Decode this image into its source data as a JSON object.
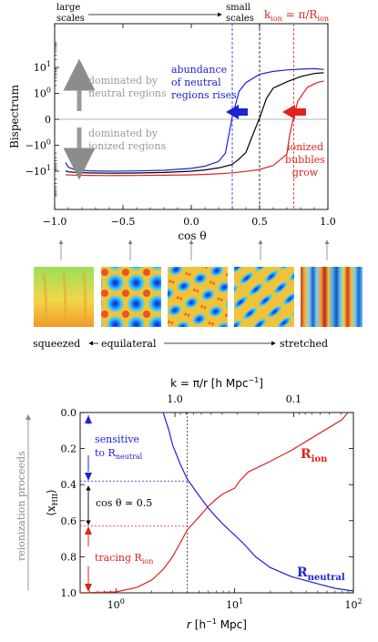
{
  "header": {
    "large_scales": "large\nscales",
    "small_scales": "small\nscales",
    "k_ion_label": "k_ion = π/R_ion"
  },
  "thumbnails": {
    "labels": {
      "squeezed": "squeezed",
      "equilateral": "equilateral",
      "stretched": "stretched"
    }
  },
  "side_label": "reionization proceeds",
  "colors": {
    "blue": "#1f22d6",
    "red": "#e0221f",
    "black": "#000000",
    "gray": "#9a9a9a"
  },
  "chart_data": [
    {
      "type": "line",
      "title": "",
      "xlabel": "cos θ",
      "ylabel": "Bispectrum",
      "yscale": "symlog",
      "xlim": [
        -1.0,
        1.0
      ],
      "ylim": [
        -20,
        15
      ],
      "xticks": [
        "−1.0",
        "−0.5",
        "0.0",
        "0.5",
        "1.0"
      ],
      "yticks": [
        "10^1",
        "10^0",
        "0",
        "−10^0",
        "−10^1"
      ],
      "vlines": [
        {
          "x": 0.3,
          "color": "blue",
          "style": "dashed"
        },
        {
          "x": 0.5,
          "color": "black",
          "style": "dashed"
        },
        {
          "x": 0.75,
          "color": "red",
          "style": "dashed"
        }
      ],
      "annotations": {
        "neutral_dominated": "dominated by\nneutral regions",
        "ionized_dominated": "dominated by\nionized regions",
        "blue_note": "abundance\nof neutral\nregions rises",
        "red_note": "ionized\nbubbles\ngrow"
      },
      "series": [
        {
          "color": "blue",
          "x": [
            -0.92,
            -0.9,
            -0.85,
            -0.75,
            -0.6,
            -0.4,
            -0.2,
            0.0,
            0.1,
            0.2,
            0.25,
            0.3,
            0.35,
            0.4,
            0.5,
            0.6,
            0.7,
            0.8,
            0.9,
            0.97
          ],
          "y": [
            -4.6,
            -7.0,
            -8.8,
            -9.7,
            -10.0,
            -9.8,
            -9.2,
            -7.8,
            -6.4,
            -4.2,
            -2.0,
            0.1,
            1.2,
            2.6,
            5.4,
            7.0,
            8.0,
            8.6,
            8.9,
            8.3
          ]
        },
        {
          "color": "black",
          "x": [
            -0.92,
            -0.9,
            -0.85,
            -0.75,
            -0.6,
            -0.4,
            -0.2,
            0.0,
            0.1,
            0.2,
            0.3,
            0.35,
            0.4,
            0.45,
            0.5,
            0.55,
            0.6,
            0.7,
            0.8,
            0.9,
            0.97
          ],
          "y": [
            -9.8,
            -10.6,
            -11.1,
            -11.7,
            -11.9,
            -11.8,
            -11.2,
            -10.0,
            -8.9,
            -7.5,
            -5.5,
            -3.4,
            -1.9,
            -0.6,
            0.05,
            0.8,
            1.6,
            2.8,
            4.4,
            5.8,
            6.2
          ]
        },
        {
          "color": "red",
          "x": [
            -0.92,
            -0.9,
            -0.85,
            -0.75,
            -0.6,
            -0.4,
            -0.2,
            0.0,
            0.1,
            0.2,
            0.3,
            0.4,
            0.5,
            0.6,
            0.7,
            0.72,
            0.75,
            0.78,
            0.85,
            0.92,
            0.97
          ],
          "y": [
            -13.5,
            -13.9,
            -14.2,
            -14.5,
            -14.7,
            -14.6,
            -14.3,
            -13.8,
            -13.3,
            -12.6,
            -11.6,
            -10.2,
            -8.6,
            -6.0,
            -2.2,
            -0.6,
            0.1,
            0.7,
            1.7,
            2.6,
            3.0
          ]
        }
      ]
    },
    {
      "type": "line",
      "title": "",
      "xlabel": "r [h⁻¹ Mpc]",
      "ylabel": "⟨x_HII⟩",
      "top_xlabel": "k = π/r [h Mpc⁻¹]",
      "xscale": "log",
      "xlim": [
        0.5,
        100
      ],
      "ylim": [
        1.0,
        0.0
      ],
      "xticks": [
        "10^0",
        "10^1",
        "10^2"
      ],
      "top_xticks": [
        "1.0",
        "0.1"
      ],
      "yticks": [
        "0.0",
        "0.2",
        "0.4",
        "0.6",
        "0.8",
        "1.0"
      ],
      "guides": {
        "r_cross": 4.0,
        "y_blue": 0.38,
        "y_red": 0.63
      },
      "annotations": {
        "sensitive": "sensitive\nto R_neutral",
        "cos_half": "cos θ ≃ 0.5",
        "tracing": "tracing R_ion"
      },
      "series": [
        {
          "name": "R_ion",
          "color": "red",
          "x": [
            0.5,
            1.0,
            1.5,
            2.0,
            2.5,
            3.0,
            3.5,
            4.0,
            5.0,
            6.0,
            7.0,
            8.0,
            10.0,
            11.0,
            13.0,
            15.0,
            20.0,
            30.0,
            40.0,
            60.0,
            80.0,
            90.0
          ],
          "y": [
            1.0,
            0.995,
            0.97,
            0.93,
            0.87,
            0.8,
            0.72,
            0.65,
            0.58,
            0.52,
            0.48,
            0.45,
            0.42,
            0.38,
            0.33,
            0.31,
            0.27,
            0.21,
            0.16,
            0.09,
            0.04,
            0.0
          ]
        },
        {
          "name": "R_neutral",
          "color": "blue",
          "x": [
            2.5,
            2.8,
            3.0,
            3.5,
            4.0,
            5.0,
            6.0,
            7.0,
            8.0,
            10.0,
            12.0,
            15.0,
            20.0,
            30.0,
            50.0,
            70.0,
            100.0
          ],
          "y": [
            0.0,
            0.1,
            0.18,
            0.29,
            0.37,
            0.46,
            0.53,
            0.58,
            0.62,
            0.68,
            0.73,
            0.8,
            0.86,
            0.91,
            0.95,
            0.975,
            0.99
          ]
        }
      ]
    }
  ]
}
